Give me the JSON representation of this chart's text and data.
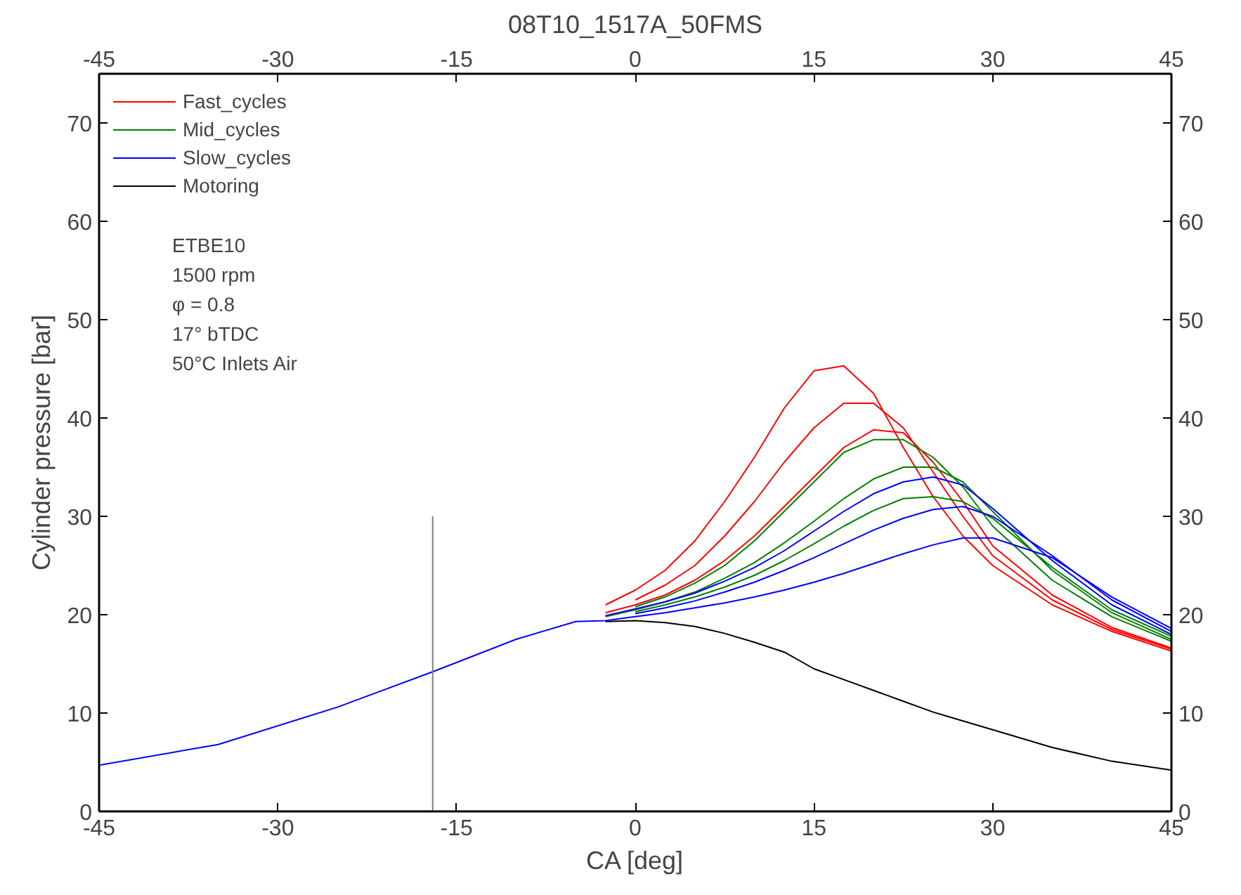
{
  "chart_data": {
    "type": "line",
    "title": "08T10_1517A_50FMS",
    "xlabel": "CA [deg]",
    "ylabel": "Cylinder pressure [bar]",
    "xlim": [
      -45,
      45
    ],
    "xticks": [
      -45,
      -30,
      -15,
      0,
      15,
      30,
      45
    ],
    "x2lim": [
      -45,
      45
    ],
    "x2ticks": [
      -45,
      -30,
      -15,
      0,
      15,
      30,
      45
    ],
    "ylim": [
      0,
      75
    ],
    "yticks": [
      0,
      10,
      20,
      30,
      40,
      50,
      60,
      70
    ],
    "y2lim": [
      0,
      75
    ],
    "y2ticks": [
      0,
      10,
      20,
      30,
      40,
      50,
      60,
      70
    ],
    "grid": false,
    "legend": "top left",
    "marker": "none",
    "line_style": "solid",
    "annotations": [
      "ETBE10",
      "1500 rpm",
      "φ = 0.8",
      "17° bTDC",
      "50°C Inlets Air"
    ],
    "x": [
      -2.5,
      0,
      2.5,
      5,
      7.5,
      10,
      12.5,
      15,
      17.5,
      20,
      22.5,
      25,
      27.5,
      30,
      35,
      40,
      45
    ],
    "series": [
      {
        "name": "Fast_cycles",
        "color": "#ff0000",
        "values": [
          21,
          22.5,
          24.5,
          27.5,
          31.5,
          36,
          41,
          44.8,
          45.3,
          42.5,
          37,
          32,
          28,
          25,
          21,
          18.3,
          16.3
        ]
      },
      {
        "color": "#ff0000",
        "x": [
          0,
          2.5,
          5,
          7.5,
          10,
          12.5,
          15,
          17.5,
          20,
          22.5,
          25,
          27.5,
          30,
          35,
          40,
          45
        ],
        "values": [
          21.5,
          23,
          25,
          28,
          31.5,
          35.5,
          39,
          41.5,
          41.5,
          39,
          34.5,
          30,
          26,
          21.5,
          18.5,
          16.5
        ]
      },
      {
        "color": "#ff0000",
        "values": [
          20.2,
          21,
          22,
          23.5,
          25.5,
          28,
          31,
          34,
          37,
          38.8,
          38.5,
          35.5,
          31.5,
          27,
          22,
          18.7,
          16.6
        ]
      },
      {
        "name": "Mid_cycles",
        "color": "#008000",
        "x": [
          0,
          2.5,
          5,
          7.5,
          10,
          12.5,
          15,
          17.5,
          20,
          22.5,
          25,
          27.5,
          30,
          35,
          40,
          45
        ],
        "values": [
          20.8,
          21.8,
          23.2,
          25,
          27.5,
          30.5,
          33.5,
          36.5,
          37.8,
          37.8,
          36,
          33,
          29,
          23.5,
          19.8,
          17.3
        ]
      },
      {
        "color": "#008000",
        "values": [
          19.8,
          20.5,
          21.3,
          22.3,
          23.7,
          25.3,
          27.3,
          29.5,
          31.8,
          33.8,
          35,
          35,
          33.5,
          30.5,
          24.5,
          20.2,
          17.5
        ]
      },
      {
        "color": "#008000",
        "x": [
          0,
          2.5,
          5,
          7.5,
          10,
          12.5,
          15,
          17.5,
          20,
          22.5,
          25,
          27.5,
          30,
          35,
          40,
          45
        ],
        "values": [
          20.3,
          21,
          21.8,
          22.8,
          24,
          25.5,
          27.2,
          29,
          30.6,
          31.8,
          32,
          31.5,
          29.8,
          24.8,
          20.5,
          17.8
        ]
      },
      {
        "name": "Slow_cycles",
        "color": "#0000ff",
        "values": [
          19.9,
          20.6,
          21.3,
          22.2,
          23.4,
          24.8,
          26.5,
          28.5,
          30.5,
          32.3,
          33.5,
          34,
          33.2,
          30.8,
          25.5,
          21,
          18
        ]
      },
      {
        "color": "#0000ff",
        "x": [
          0,
          2.5,
          5,
          7.5,
          10,
          12.5,
          15,
          17.5,
          20,
          22.5,
          25,
          27.5,
          30,
          35,
          40,
          45
        ],
        "values": [
          20.1,
          20.7,
          21.4,
          22.3,
          23.3,
          24.5,
          25.8,
          27.2,
          28.6,
          29.8,
          30.7,
          31,
          30,
          26,
          21.5,
          18.3
        ]
      },
      {
        "name": "Motoring",
        "color": "#000000",
        "values": [
          19.3,
          19.4,
          19.2,
          18.8,
          18.1,
          17.2,
          16.2,
          14.5,
          13.4,
          12.3,
          11.2,
          10.1,
          9.2,
          8.3,
          6.5,
          5.1,
          4.2
        ]
      },
      {
        "color": "#0000ff",
        "x": [
          -45,
          -35,
          -25,
          -17,
          -10,
          -5,
          -2.5,
          0,
          2.5,
          5,
          7.5,
          10,
          12.5,
          15,
          17.5,
          20,
          22.5,
          25,
          27.5,
          30,
          35,
          40,
          45
        ],
        "values": [
          4.7,
          6.8,
          10.6,
          14.2,
          17.5,
          19.3,
          19.4,
          19.8,
          20.2,
          20.7,
          21.2,
          21.8,
          22.5,
          23.3,
          24.2,
          25.2,
          26.2,
          27.1,
          27.8,
          27.8,
          25.8,
          21.8,
          18.6
        ]
      },
      {
        "color": "#808080",
        "x": [
          -17,
          -17
        ],
        "values": [
          0,
          30
        ]
      }
    ]
  }
}
